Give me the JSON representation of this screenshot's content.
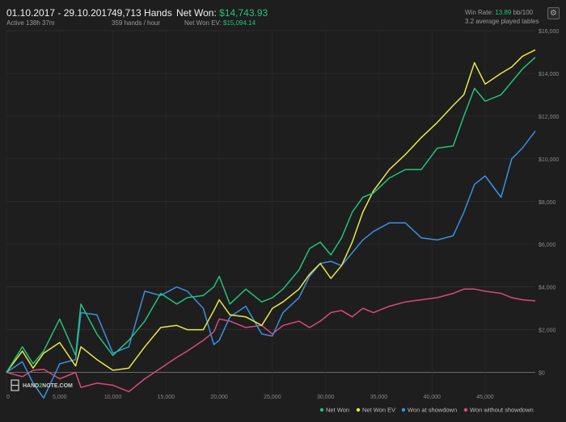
{
  "header": {
    "date_range": "01.10.2017 - 29.10.2017",
    "active": "Active 138h 37m",
    "hands": "49,713 Hands",
    "hands_per_hour": "359 hands / hour",
    "net_won_label": "Net Won:",
    "net_won_value": "$14,743.93",
    "net_won_ev_label": "Net Won  EV:",
    "net_won_ev_value": "$15,094.14",
    "win_rate_label": "Win Rate:",
    "win_rate_value": "13.89",
    "win_rate_unit": "bb/100",
    "tables": "3.2 average played tables"
  },
  "logo": {
    "part1": "HAND",
    "part2": "2",
    "part3": "NOTE.COM"
  },
  "icons": {
    "settings": "gear-icon"
  },
  "chart_data": {
    "type": "line",
    "xlim": [
      0,
      49713
    ],
    "ylim": [
      -1000,
      16000
    ],
    "x_ticks": [
      0,
      5000,
      10000,
      15000,
      20000,
      25000,
      30000,
      35000,
      40000,
      45000
    ],
    "x_tick_labels": [
      "0",
      "5,000",
      "10,000",
      "15,000",
      "20,000",
      "25,000",
      "30,000",
      "35,000",
      "40,000",
      "45,000"
    ],
    "y_ticks": [
      0,
      2000,
      4000,
      6000,
      8000,
      10000,
      12000,
      14000,
      16000
    ],
    "y_tick_labels": [
      "$0",
      "$2,000",
      "$4,000",
      "$6,000",
      "$8,000",
      "$10,000",
      "$12,000",
      "$14,000",
      "$16,000"
    ],
    "grid": true,
    "legend_position": "bottom-right",
    "x": [
      0,
      1500,
      2500,
      3500,
      5000,
      6500,
      7000,
      8500,
      10000,
      11500,
      13000,
      14500,
      16000,
      17000,
      18500,
      19500,
      20000,
      21000,
      22500,
      24000,
      25000,
      26000,
      27500,
      28500,
      29500,
      30500,
      31500,
      32500,
      33500,
      34500,
      36000,
      37500,
      39000,
      40500,
      42000,
      43000,
      44000,
      45000,
      46500,
      47500,
      48500,
      49713
    ],
    "series": [
      {
        "name": "Net Won",
        "color": "#22c37a",
        "values": [
          0,
          1200,
          400,
          1000,
          2500,
          800,
          3200,
          1800,
          800,
          1500,
          2400,
          3700,
          3200,
          3500,
          3600,
          4000,
          4500,
          3200,
          3900,
          3300,
          3500,
          3900,
          4800,
          5800,
          6100,
          5500,
          6300,
          7500,
          8200,
          8400,
          9100,
          9500,
          9500,
          10500,
          10600,
          12000,
          13300,
          12700,
          13000,
          13600,
          14200,
          14750
        ]
      },
      {
        "name": "Net Won  EV",
        "color": "#e8e84a",
        "values": [
          0,
          1000,
          200,
          900,
          1400,
          300,
          1200,
          600,
          100,
          200,
          1200,
          2100,
          2200,
          2000,
          2000,
          2900,
          3400,
          2700,
          2600,
          2200,
          3000,
          3300,
          3900,
          4600,
          5100,
          4400,
          5000,
          6100,
          7500,
          8500,
          9500,
          10200,
          11000,
          11700,
          12500,
          13000,
          14500,
          13500,
          14000,
          14300,
          14800,
          15100
        ]
      },
      {
        "name": "Won at showdown",
        "color": "#3d8fe0",
        "values": [
          0,
          500,
          -500,
          -1200,
          400,
          600,
          2800,
          2700,
          900,
          1200,
          3800,
          3600,
          4000,
          3800,
          3000,
          1300,
          1500,
          2600,
          3100,
          1800,
          1700,
          2800,
          3500,
          4500,
          5100,
          5200,
          5000,
          5600,
          6200,
          6600,
          7000,
          7000,
          6300,
          6200,
          6400,
          7500,
          8800,
          9200,
          8200,
          10000,
          10500,
          11300
        ]
      },
      {
        "name": "Won without showdown",
        "color": "#d94a7a",
        "values": [
          0,
          -200,
          100,
          150,
          -300,
          0,
          -700,
          -500,
          -600,
          -900,
          -300,
          200,
          700,
          1000,
          1500,
          1900,
          2500,
          2400,
          2100,
          2200,
          1800,
          2200,
          2400,
          2100,
          2400,
          2800,
          2900,
          2600,
          3000,
          2800,
          3100,
          3300,
          3400,
          3500,
          3700,
          3900,
          3900,
          3800,
          3700,
          3500,
          3400,
          3350
        ]
      }
    ]
  }
}
